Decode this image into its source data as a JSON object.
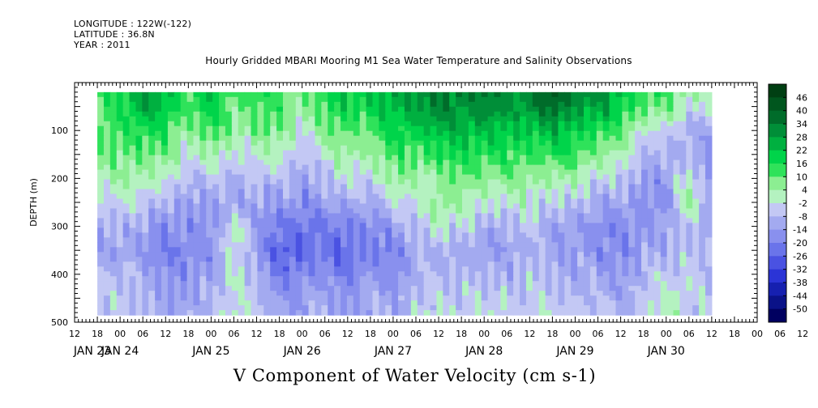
{
  "header": {
    "longitude": "LONGITUDE : 122W(-122)",
    "latitude": "LATITUDE : 36.8N",
    "year": "YEAR : 2011",
    "title": "Hourly Gridded MBARI Mooring M1 Sea Water Temperature and Salinity Observations"
  },
  "chart_data": {
    "type": "heatmap",
    "title": "Hourly Gridded MBARI Mooring M1 Sea Water Temperature and Salinity Observations",
    "xlabel": "",
    "ylabel": "DEPTH (m)",
    "variable_label": "V Component of Water Velocity (cm s-1)",
    "y_ticks": [
      100,
      200,
      300,
      400,
      500
    ],
    "y_tick_labels": [
      "100",
      "200",
      "300",
      "400",
      "500"
    ],
    "ylim": [
      500,
      0
    ],
    "x_hour_labels": [
      "12",
      "18",
      "00",
      "06",
      "12",
      "18",
      "00",
      "06",
      "12",
      "18",
      "00",
      "06",
      "12",
      "18",
      "00",
      "06",
      "12",
      "18",
      "00",
      "06",
      "12",
      "18",
      "00",
      "06",
      "12",
      "18",
      "00",
      "06",
      "12",
      "18",
      "00",
      "06",
      "12"
    ],
    "x_day_labels": [
      "JAN 23",
      "JAN 24",
      "JAN 25",
      "JAN 26",
      "JAN 27",
      "JAN 28",
      "JAN 29",
      "JAN 30"
    ],
    "colorbar_levels": [
      46,
      40,
      34,
      28,
      22,
      16,
      10,
      4,
      -2,
      -8,
      -14,
      -20,
      -26,
      -32,
      -38,
      -44,
      -50
    ],
    "colorbar_colors": [
      "#003f13",
      "#00561e",
      "#006c2a",
      "#008e38",
      "#00b040",
      "#00d44a",
      "#2fe25a",
      "#8cee92",
      "#b4f2c0",
      "#c3c8f4",
      "#a3aaf0",
      "#8990ee",
      "#6a74ea",
      "#4a52e2",
      "#2b34d6",
      "#1620b0",
      "#0a1288",
      "#000060"
    ],
    "data_region": {
      "time_start_hour": 18,
      "time_end_hour": 180,
      "depth_start": 20,
      "depth_end": 485
    },
    "value_grid": {
      "times": [
        18,
        24,
        30,
        36,
        42,
        48,
        54,
        60,
        66,
        72,
        78,
        84,
        90,
        96,
        102,
        108,
        114,
        120,
        126,
        132,
        138,
        144,
        150,
        156,
        162,
        168,
        174,
        180
      ],
      "depths": [
        20,
        60,
        100,
        150,
        200,
        250,
        300,
        350,
        400,
        450,
        485
      ],
      "values": [
        [
          12,
          18,
          30,
          22,
          14,
          20,
          10,
          14,
          12,
          8,
          16,
          22,
          20,
          26,
          30,
          32,
          34,
          34,
          30,
          34,
          42,
          34,
          30,
          22,
          14,
          10,
          6,
          2
        ],
        [
          10,
          16,
          26,
          18,
          12,
          18,
          8,
          12,
          10,
          6,
          12,
          18,
          16,
          22,
          28,
          30,
          30,
          30,
          26,
          30,
          34,
          28,
          26,
          18,
          10,
          4,
          -2,
          -6
        ],
        [
          8,
          12,
          18,
          12,
          6,
          12,
          4,
          8,
          6,
          0,
          6,
          10,
          12,
          16,
          20,
          22,
          24,
          24,
          20,
          22,
          24,
          20,
          16,
          8,
          0,
          -6,
          -8,
          -12
        ],
        [
          6,
          8,
          12,
          6,
          0,
          4,
          -4,
          2,
          0,
          -6,
          0,
          4,
          6,
          10,
          12,
          14,
          16,
          16,
          12,
          14,
          14,
          12,
          8,
          0,
          -6,
          -10,
          -12,
          -14
        ],
        [
          2,
          2,
          4,
          -2,
          -8,
          -4,
          -10,
          -4,
          -8,
          -12,
          -6,
          -4,
          -2,
          4,
          4,
          6,
          8,
          8,
          6,
          6,
          4,
          2,
          -2,
          -6,
          -12,
          -14,
          0,
          -14
        ],
        [
          -2,
          -4,
          -4,
          -10,
          -14,
          -10,
          -14,
          -10,
          -14,
          -18,
          -12,
          -12,
          -10,
          -4,
          -2,
          8,
          2,
          0,
          -2,
          -2,
          -4,
          -8,
          -10,
          -12,
          -16,
          -14,
          4,
          -12
        ],
        [
          -8,
          -10,
          -12,
          -16,
          -18,
          -14,
          0,
          -14,
          -20,
          -24,
          -18,
          -22,
          -18,
          -12,
          -8,
          2,
          -6,
          -8,
          -10,
          -6,
          -10,
          -14,
          -16,
          -18,
          -16,
          -12,
          -8,
          -14
        ],
        [
          -10,
          -12,
          -14,
          -18,
          -20,
          -16,
          2,
          -16,
          -24,
          -28,
          -20,
          -26,
          -20,
          -18,
          -14,
          -8,
          -10,
          -12,
          -12,
          -10,
          -12,
          -14,
          -16,
          -18,
          -14,
          -8,
          -6,
          -12
        ],
        [
          -8,
          -6,
          -12,
          -16,
          -16,
          -14,
          0,
          -12,
          -20,
          -20,
          -16,
          -20,
          -16,
          -16,
          -10,
          -8,
          -8,
          -10,
          -8,
          -8,
          -10,
          -10,
          -14,
          -14,
          -10,
          -4,
          -4,
          -10
        ],
        [
          -6,
          -4,
          -10,
          -12,
          -12,
          -10,
          2,
          -8,
          -14,
          -14,
          -12,
          -14,
          -12,
          -12,
          -6,
          -6,
          -4,
          -6,
          -4,
          -6,
          -6,
          -6,
          -10,
          -10,
          -6,
          0,
          -2,
          -8
        ],
        [
          -6,
          -4,
          -8,
          -10,
          -10,
          -8,
          2,
          -6,
          -12,
          -12,
          -10,
          -12,
          -10,
          -10,
          -4,
          -4,
          -2,
          -4,
          -2,
          -4,
          -4,
          -4,
          -8,
          -8,
          -4,
          2,
          -2,
          -6
        ]
      ]
    }
  },
  "footer": {
    "variable_label": "V Component of Water Velocity (cm s-1)"
  }
}
